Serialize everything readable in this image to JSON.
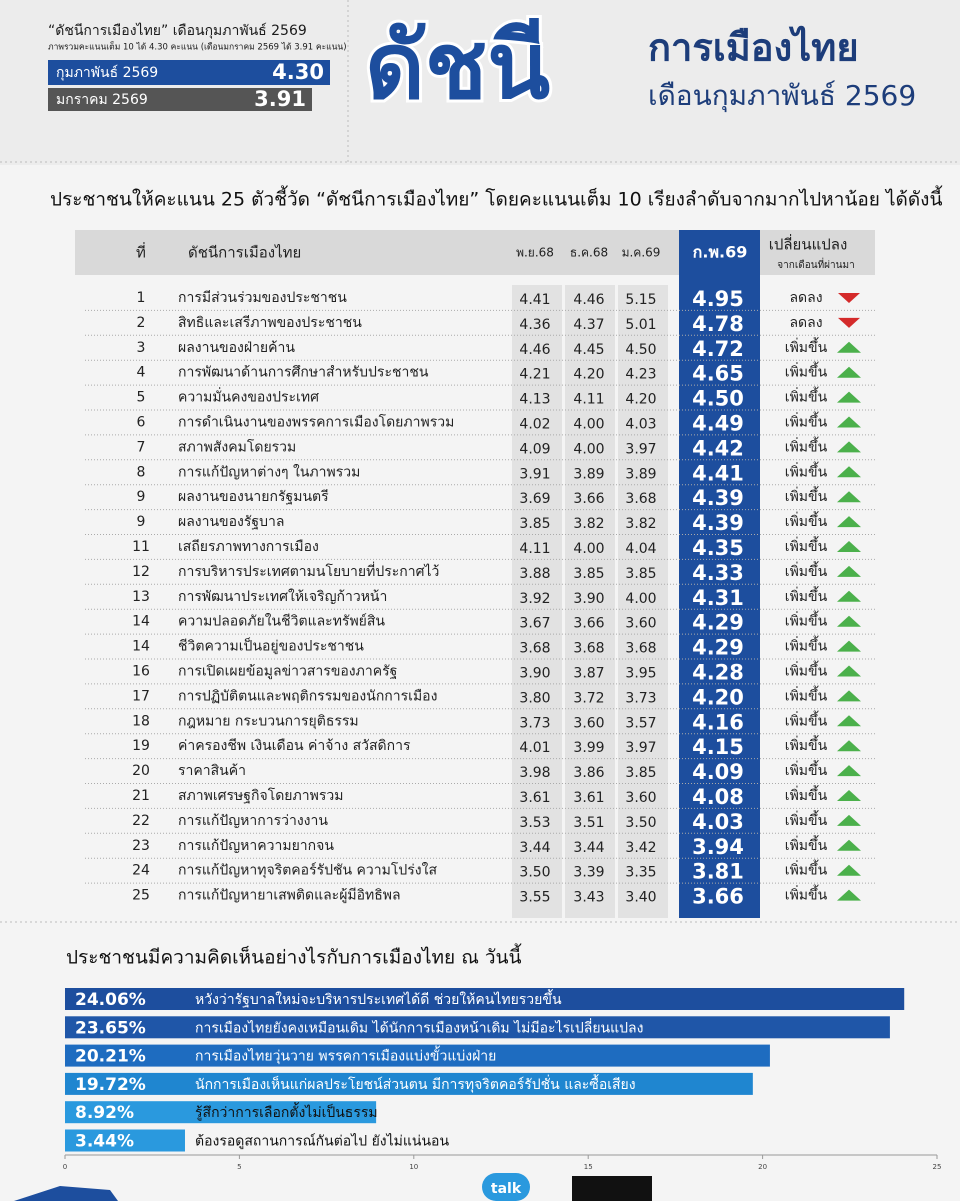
{
  "header": {
    "index_label": "“ดัชนีการเมืองไทย” เดือนกุมภาพันธ์ 2569",
    "note": "ภาพรวมคะแนนเต็ม 10 ได้ 4.30 คะแนน (เดือนมกราคม 2569 ได้ 3.91 คะแนน)",
    "current": {
      "label": "กุมภาพันธ์ 2569",
      "value": "4.30"
    },
    "previous": {
      "label": "มกราคม 2569",
      "value": "3.91"
    },
    "big_title": "ดัชนี",
    "title": "การเมืองไทย",
    "subtitle": "เดือนกุมภาพันธ์ 2569"
  },
  "section_title": "ประชาชนให้คะแนน 25 ตัวชี้วัด “ดัชนีการเมืองไทย” โดยคะแนนเต็ม 10 เรียงลำดับจากมากไปหาน้อย ได้ดังนี้",
  "table": {
    "headers": [
      "ที่",
      "ดัชนีการเมืองไทย",
      "พ.ย.68",
      "ธ.ค.68",
      "ม.ค.69",
      "ก.พ.69",
      "เปลี่ยนแปลง"
    ],
    "header_note": "จากเดือนที่ผ่านมา",
    "rows": [
      [
        "1",
        "การมีส่วนร่วมของประชาชน",
        "4.41",
        "4.46",
        "5.15",
        "4.95",
        "ลดลง"
      ],
      [
        "2",
        "สิทธิและเสรีภาพของประชาชน",
        "4.36",
        "4.37",
        "5.01",
        "4.78",
        "ลดลง"
      ],
      [
        "3",
        "ผลงานของฝ่ายค้าน",
        "4.46",
        "4.45",
        "4.50",
        "4.72",
        "เพิ่มขึ้น"
      ],
      [
        "4",
        "การพัฒนาด้านการศึกษาสำหรับประชาชน",
        "4.21",
        "4.20",
        "4.23",
        "4.65",
        "เพิ่มขึ้น"
      ],
      [
        "5",
        "ความมั่นคงของประเทศ",
        "4.13",
        "4.11",
        "4.20",
        "4.50",
        "เพิ่มขึ้น"
      ],
      [
        "6",
        "การดำเนินงานของพรรคการเมืองโดยภาพรวม",
        "4.02",
        "4.00",
        "4.03",
        "4.49",
        "เพิ่มขึ้น"
      ],
      [
        "7",
        "สภาพสังคมโดยรวม",
        "4.09",
        "4.00",
        "3.97",
        "4.42",
        "เพิ่มขึ้น"
      ],
      [
        "8",
        "การแก้ปัญหาต่างๆ ในภาพรวม",
        "3.91",
        "3.89",
        "3.89",
        "4.41",
        "เพิ่มขึ้น"
      ],
      [
        "9",
        "ผลงานของนายกรัฐมนตรี",
        "3.69",
        "3.66",
        "3.68",
        "4.39",
        "เพิ่มขึ้น"
      ],
      [
        "9",
        "ผลงานของรัฐบาล",
        "3.85",
        "3.82",
        "3.82",
        "4.39",
        "เพิ่มขึ้น"
      ],
      [
        "11",
        "เสถียรภาพทางการเมือง",
        "4.11",
        "4.00",
        "4.04",
        "4.35",
        "เพิ่มขึ้น"
      ],
      [
        "12",
        "การบริหารประเทศตามนโยบายที่ประกาศไว้",
        "3.88",
        "3.85",
        "3.85",
        "4.33",
        "เพิ่มขึ้น"
      ],
      [
        "13",
        "การพัฒนาประเทศให้เจริญก้าวหน้า",
        "3.92",
        "3.90",
        "4.00",
        "4.31",
        "เพิ่มขึ้น"
      ],
      [
        "14",
        "ความปลอดภัยในชีวิตและทรัพย์สิน",
        "3.67",
        "3.66",
        "3.60",
        "4.29",
        "เพิ่มขึ้น"
      ],
      [
        "14",
        "ชีวิตความเป็นอยู่ของประชาชน",
        "3.68",
        "3.68",
        "3.68",
        "4.29",
        "เพิ่มขึ้น"
      ],
      [
        "16",
        "การเปิดเผยข้อมูลข่าวสารของภาครัฐ",
        "3.90",
        "3.87",
        "3.95",
        "4.28",
        "เพิ่มขึ้น"
      ],
      [
        "17",
        "การปฏิบัติตนและพฤติกรรมของนักการเมือง",
        "3.80",
        "3.72",
        "3.73",
        "4.20",
        "เพิ่มขึ้น"
      ],
      [
        "18",
        "กฎหมาย กระบวนการยุติธรรม",
        "3.73",
        "3.60",
        "3.57",
        "4.16",
        "เพิ่มขึ้น"
      ],
      [
        "19",
        "ค่าครองชีพ เงินเดือน ค่าจ้าง สวัสดิการ",
        "4.01",
        "3.99",
        "3.97",
        "4.15",
        "เพิ่มขึ้น"
      ],
      [
        "20",
        "ราคาสินค้า",
        "3.98",
        "3.86",
        "3.85",
        "4.09",
        "เพิ่มขึ้น"
      ],
      [
        "21",
        "สภาพเศรษฐกิจโดยภาพรวม",
        "3.61",
        "3.61",
        "3.60",
        "4.08",
        "เพิ่มขึ้น"
      ],
      [
        "22",
        "การแก้ปัญหาการว่างงาน",
        "3.53",
        "3.51",
        "3.50",
        "4.03",
        "เพิ่มขึ้น"
      ],
      [
        "23",
        "การแก้ปัญหาความยากจน",
        "3.44",
        "3.44",
        "3.42",
        "3.94",
        "เพิ่มขึ้น"
      ],
      [
        "24",
        "การแก้ปัญหาทุจริตคอร์รัปชัน ความโปร่งใส",
        "3.50",
        "3.39",
        "3.35",
        "3.81",
        "เพิ่มขึ้น"
      ],
      [
        "25",
        "การแก้ปัญหายาเสพติดและผู้มีอิทธิพล",
        "3.55",
        "3.43",
        "3.40",
        "3.66",
        "เพิ่มขึ้น"
      ]
    ]
  },
  "chart_data": {
    "type": "bar",
    "orientation": "horizontal",
    "title": "ประชาชนมีความคิดเห็นอย่างไรกับการเมืองไทย ณ วันนี้",
    "categories": [
      "หวังว่ารัฐบาลใหม่จะบริหารประเทศได้ดี ช่วยให้คนไทยรวยขึ้น",
      "การเมืองไทยยังคงเหมือนเดิม ได้นักการเมืองหน้าเดิม ไม่มีอะไรเปลี่ยนแปลง",
      "การเมืองไทยวุ่นวาย พรรคการเมืองแบ่งขั้วแบ่งฝ่าย",
      "นักการเมืองเห็นแก่ผลประโยชน์ส่วนตน มีการทุจริตคอร์รัปชั่น และซื้อเสียง",
      "รู้สึกว่าการเลือกตั้งไม่เป็นธรรม",
      "ต้องรอดูสถานการณ์กันต่อไป ยังไม่แน่นอน"
    ],
    "values": [
      24.06,
      23.65,
      20.21,
      19.72,
      8.92,
      3.44
    ],
    "value_labels": [
      "24.06%",
      "23.65%",
      "20.21%",
      "19.72%",
      "8.92%",
      "3.44%"
    ],
    "colors": [
      "#1d4e9e",
      "#1f56a8",
      "#1e6cc0",
      "#1f86d0",
      "#2a99de",
      "#2a99de"
    ],
    "xlim": [
      0,
      25
    ],
    "xticks": [
      0,
      5,
      10,
      15,
      20,
      25
    ]
  },
  "footer": {
    "badge": "talk"
  }
}
